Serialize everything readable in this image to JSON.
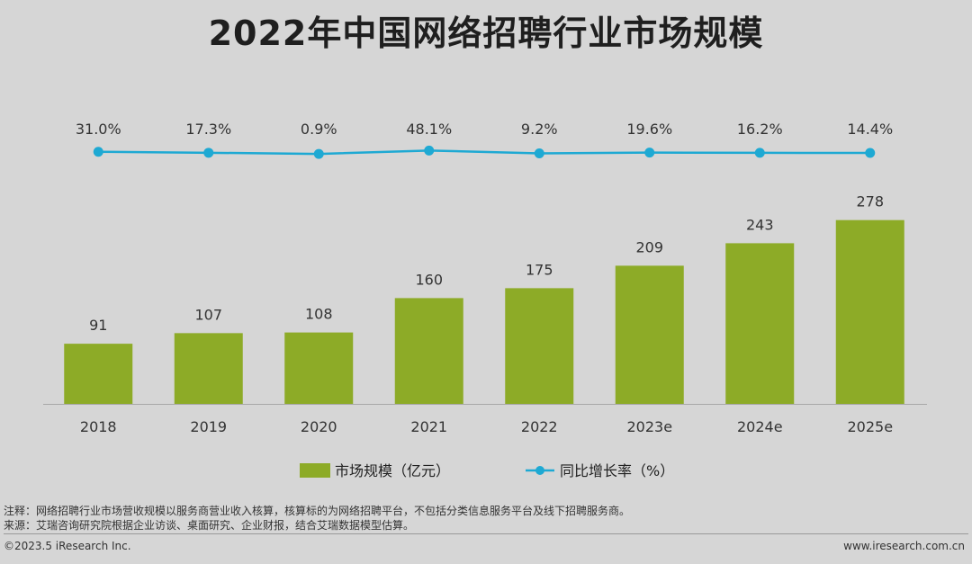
{
  "title": "2022年中国网络招聘行业市场规模",
  "chart_data": {
    "type": "bar",
    "categories": [
      "2018",
      "2019",
      "2020",
      "2021",
      "2022",
      "2023e",
      "2024e",
      "2025e"
    ],
    "series": [
      {
        "name": "市场规模（亿元）",
        "type": "bar",
        "color": "#8dab27",
        "values": [
          91,
          107,
          108,
          160,
          175,
          209,
          243,
          278
        ]
      },
      {
        "name": "同比增长率（%）",
        "type": "line",
        "color": "#1ea9d3",
        "values": [
          31.0,
          17.3,
          0.9,
          48.1,
          9.2,
          19.6,
          16.2,
          14.4
        ],
        "labels": [
          "31.0%",
          "17.3%",
          "0.9%",
          "48.1%",
          "9.2%",
          "19.6%",
          "16.2%",
          "14.4%"
        ]
      }
    ],
    "legend_position": "bottom",
    "grid": false
  },
  "notes": {
    "note": "注释：网络招聘行业市场营收规模以服务商营业收入核算，核算标的为网络招聘平台，不包括分类信息服务平台及线下招聘服务商。",
    "source": "来源：艾瑞咨询研究院根据企业访谈、桌面研究、企业财报，结合艾瑞数据模型估算。"
  },
  "footer": {
    "copyright": "©2023.5 iResearch Inc.",
    "site": "www.iresearch.com.cn"
  }
}
